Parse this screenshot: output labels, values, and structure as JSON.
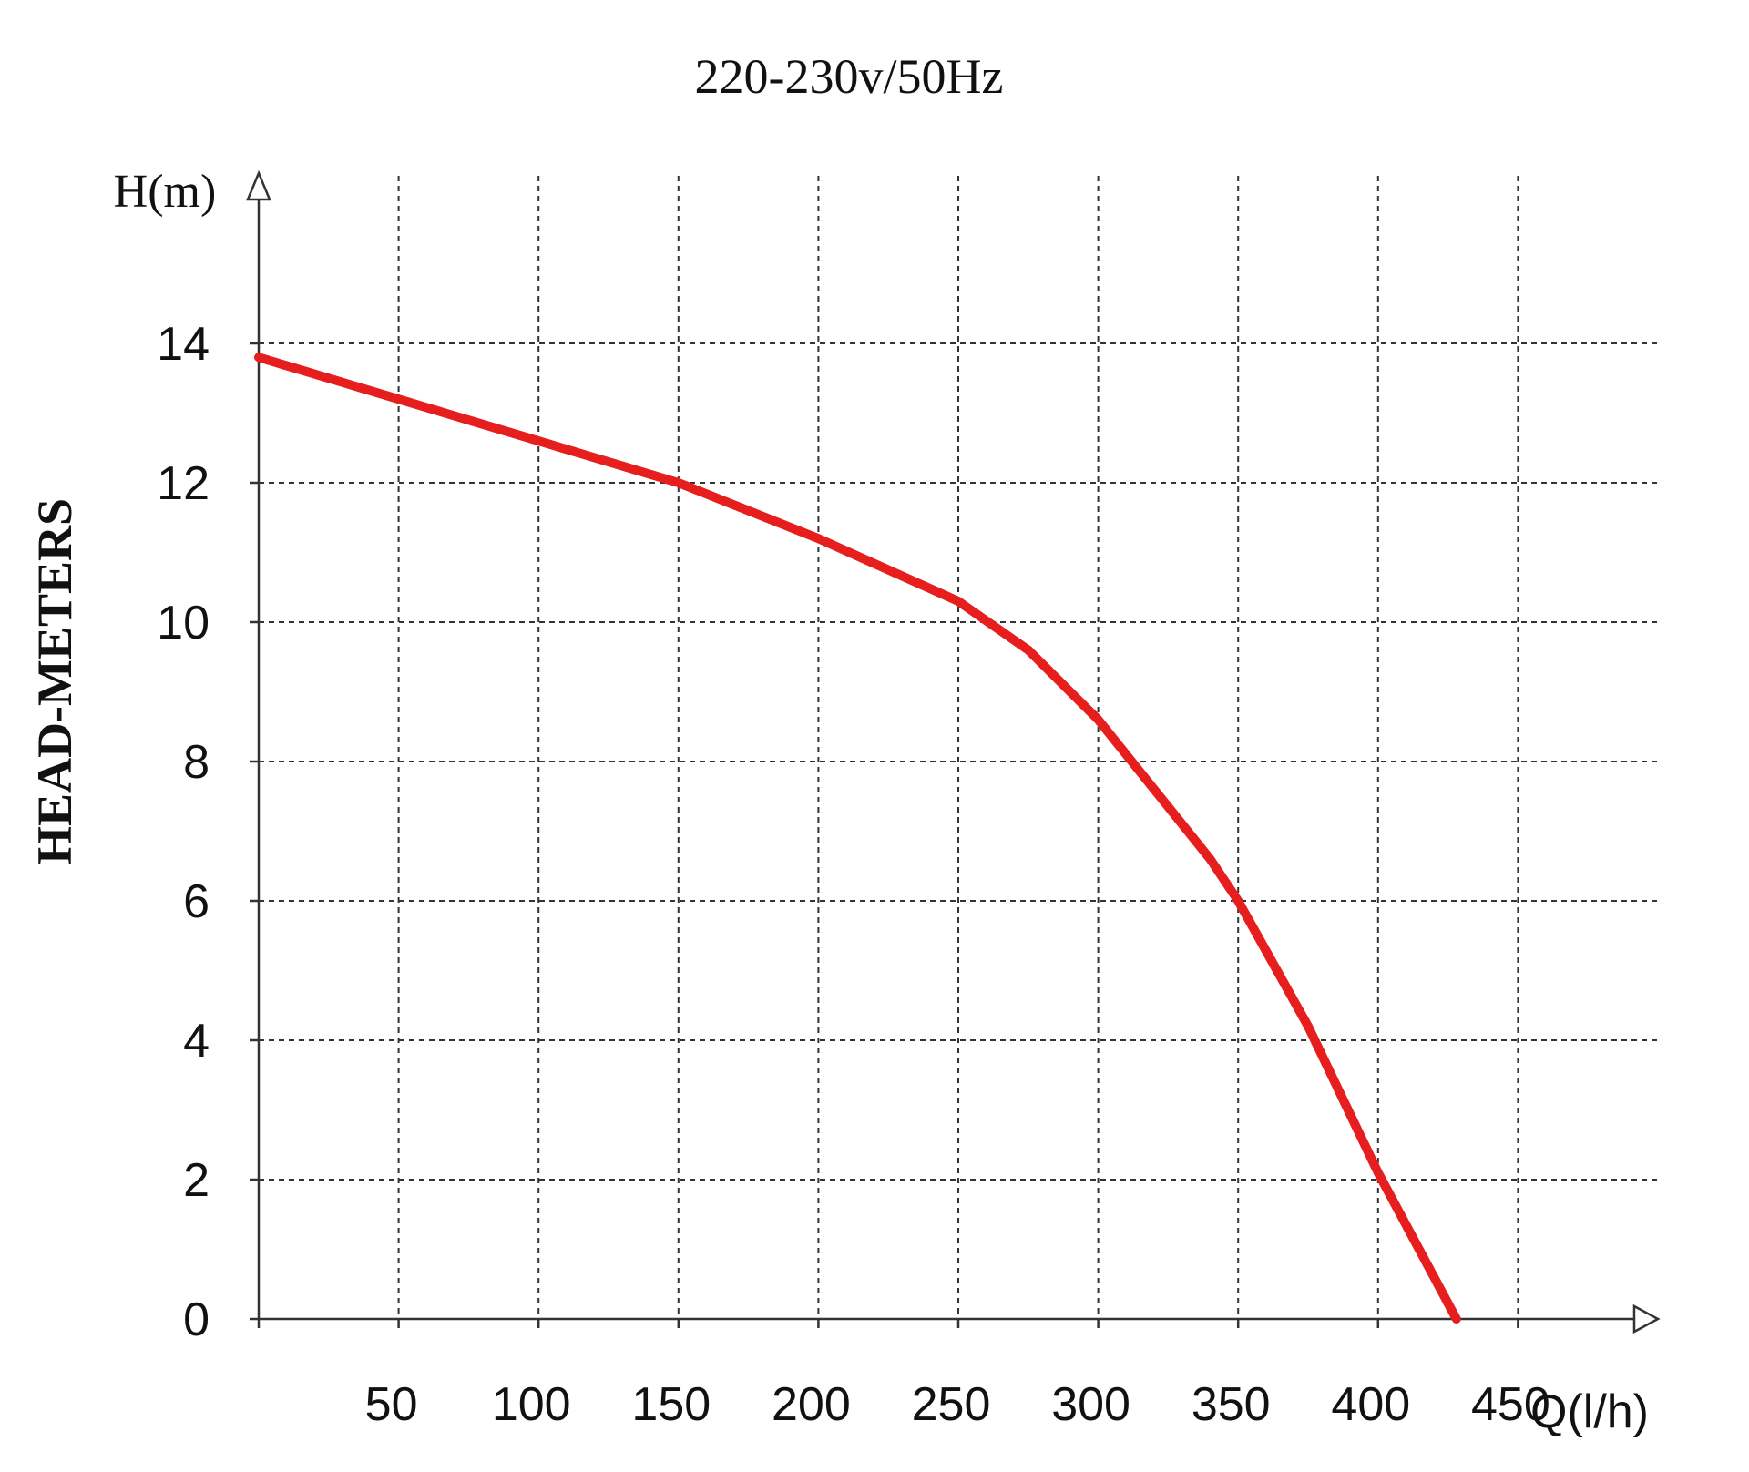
{
  "chart_data": {
    "type": "line",
    "title": "220-230v/50Hz",
    "ylabel": "HEAD-METERS",
    "y_axis_unit_label": "H(m)",
    "x_axis_unit_label": "Q(l/h)",
    "xlim": [
      0,
      500
    ],
    "ylim": [
      0,
      14.5
    ],
    "x_ticks": [
      50,
      100,
      150,
      200,
      250,
      300,
      350,
      400,
      450
    ],
    "y_ticks": [
      0,
      2,
      4,
      6,
      8,
      10,
      12,
      14
    ],
    "x_tick_labels": [
      "50",
      "100",
      "150",
      "200",
      "250",
      "300",
      "350",
      "400",
      "450"
    ],
    "y_tick_labels": [
      "0",
      "2",
      "4",
      "6",
      "8",
      "10",
      "12",
      "14"
    ],
    "grid": true,
    "grid_style": "dashed",
    "legend": "none",
    "series": [
      {
        "color": "#e61e1e",
        "x": [
          0,
          50,
          100,
          150,
          200,
          250,
          275,
          300,
          320,
          340,
          350,
          375,
          400,
          428
        ],
        "y": [
          13.8,
          13.2,
          12.6,
          12.0,
          11.2,
          10.3,
          9.6,
          8.6,
          7.6,
          6.6,
          6.0,
          4.2,
          2.1,
          0
        ]
      }
    ],
    "colors": {
      "curve": "#e61e1e",
      "axis": "#333333",
      "grid": "#333333",
      "text": "#111111"
    }
  }
}
